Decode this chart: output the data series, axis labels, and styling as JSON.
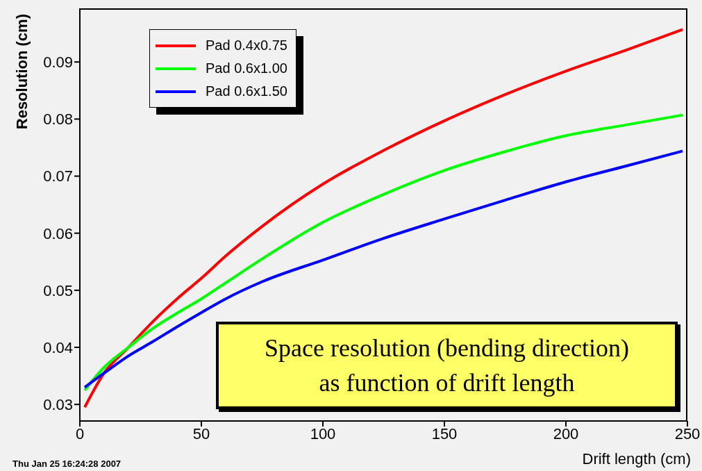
{
  "chart_data": {
    "type": "line",
    "xlabel": "Drift length (cm)",
    "ylabel": "Resolution (cm)",
    "x": [
      2,
      10,
      20,
      30,
      40,
      50,
      60,
      75,
      100,
      125,
      150,
      175,
      200,
      225,
      248
    ],
    "series": [
      {
        "name": "Pad 0.4x0.75",
        "color": "#ff0000",
        "values": [
          0.0295,
          0.0355,
          0.04,
          0.0445,
          0.0485,
          0.0521,
          0.056,
          0.0612,
          0.0686,
          0.0745,
          0.0797,
          0.0843,
          0.0884,
          0.0921,
          0.0957
        ]
      },
      {
        "name": "Pad 0.6x1.00",
        "color": "#00ff00",
        "values": [
          0.0325,
          0.0365,
          0.04,
          0.0433,
          0.046,
          0.0485,
          0.0513,
          0.0555,
          0.0619,
          0.0668,
          0.071,
          0.0743,
          0.0771,
          0.079,
          0.0807
        ]
      },
      {
        "name": "Pad 0.6x1.50",
        "color": "#0000ff",
        "values": [
          0.033,
          0.0355,
          0.0385,
          0.041,
          0.0436,
          0.0461,
          0.0485,
          0.0515,
          0.0553,
          0.0591,
          0.0625,
          0.0658,
          0.069,
          0.0718,
          0.0744
        ]
      }
    ],
    "xlim": [
      0,
      250
    ],
    "xticks": [
      0,
      50,
      100,
      150,
      200,
      250
    ],
    "ylim": [
      0.0271,
      0.0994
    ],
    "yticks": [
      0.03,
      0.04,
      0.05,
      0.06,
      0.07,
      0.08,
      0.09
    ],
    "grid": false,
    "legend": "top left",
    "marker": "none",
    "line_style": "solid",
    "annotations": [
      "Space resolution (bending direction)",
      "as function of drift length",
      "Thu Jan 25 16:24:28 2007"
    ]
  }
}
